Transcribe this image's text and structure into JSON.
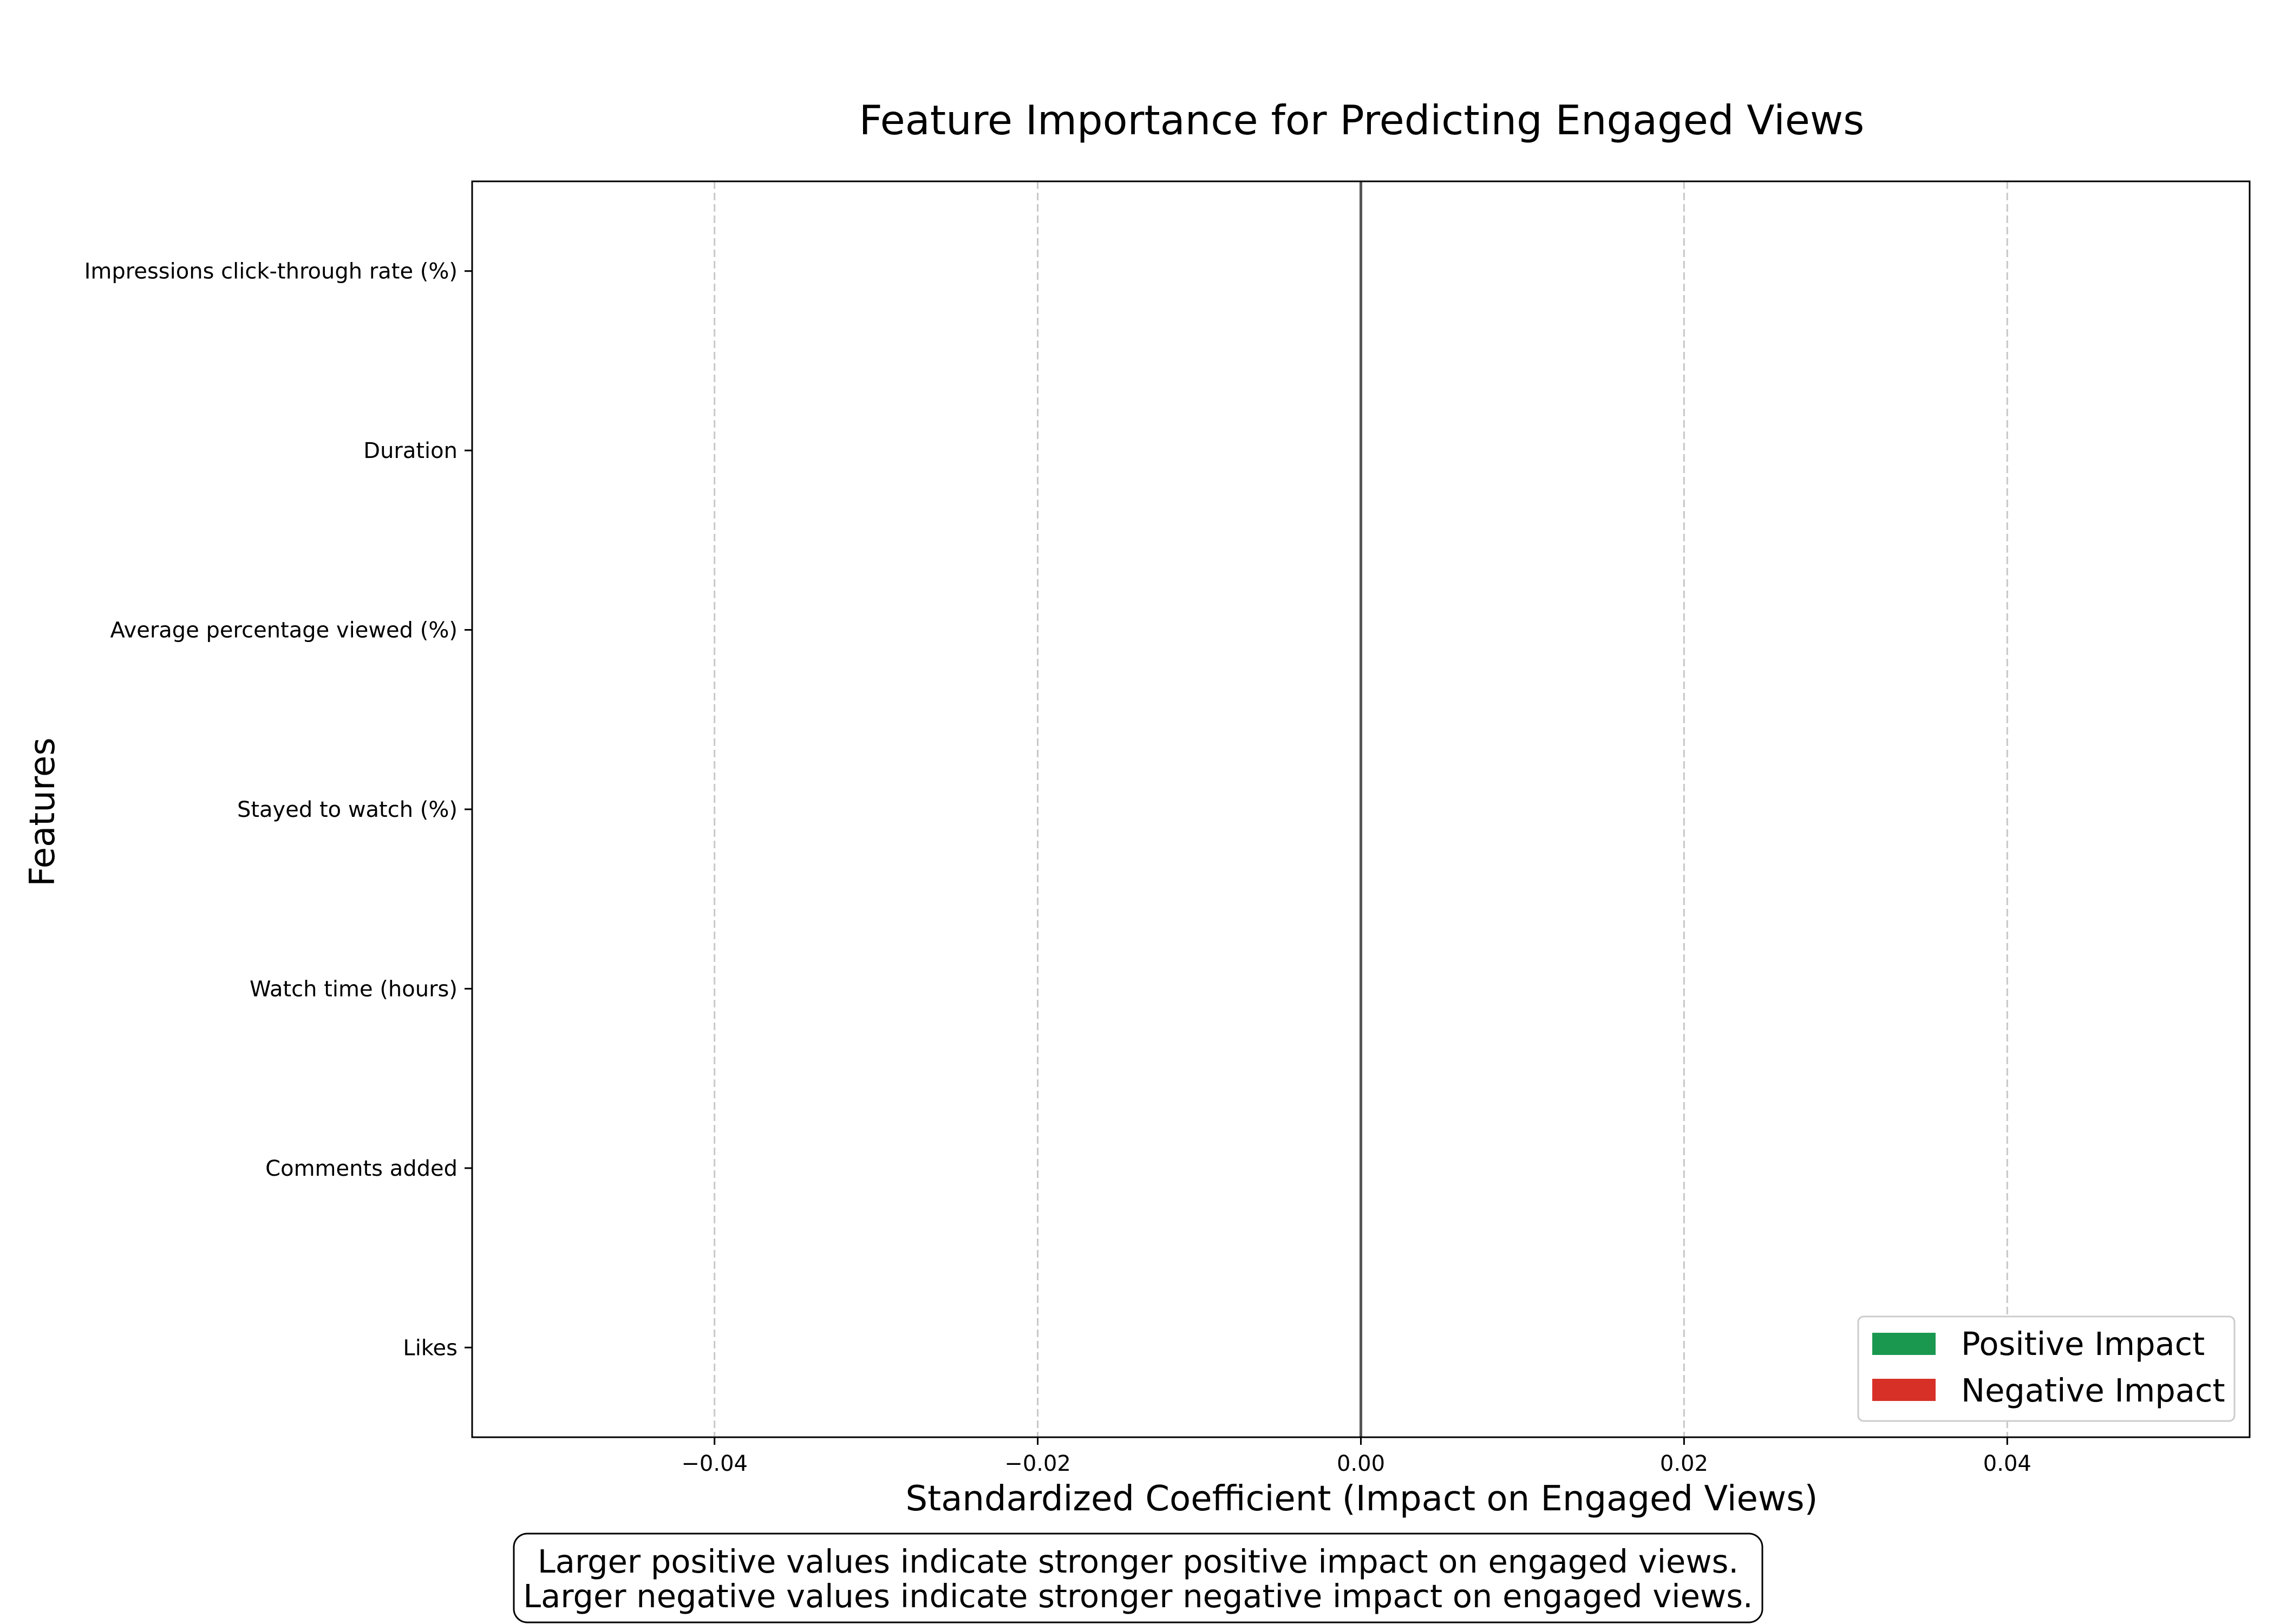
{
  "chart_data": {
    "type": "bar",
    "orientation": "horizontal",
    "title": "Feature Importance for Predicting Engaged Views",
    "xlabel": "Standardized Coefficient (Impact on Engaged Views)",
    "ylabel": "Features",
    "categories": [
      "Impressions click-through rate (%)",
      "Duration",
      "Average percentage viewed (%)",
      "Stayed to watch (%)",
      "Watch time (hours)",
      "Comments added",
      "Likes"
    ],
    "values": [
      0,
      0,
      0,
      0,
      0,
      0,
      0
    ],
    "xlim": [
      -0.055,
      0.055
    ],
    "xticks": [
      -0.04,
      -0.02,
      0.0,
      0.02,
      0.04
    ],
    "xtick_labels": [
      "−0.04",
      "−0.02",
      "0.00",
      "0.02",
      "0.04"
    ],
    "grid": "x, dashed",
    "legend": {
      "placement": "lower-right",
      "entries": [
        {
          "label": "Positive Impact",
          "color": "#1a9850"
        },
        {
          "label": "Negative Impact",
          "color": "#d73027"
        }
      ]
    },
    "annotation": [
      "Larger positive values indicate stronger positive impact on engaged views.",
      "Larger negative values indicate stronger negative impact on engaged views."
    ]
  }
}
